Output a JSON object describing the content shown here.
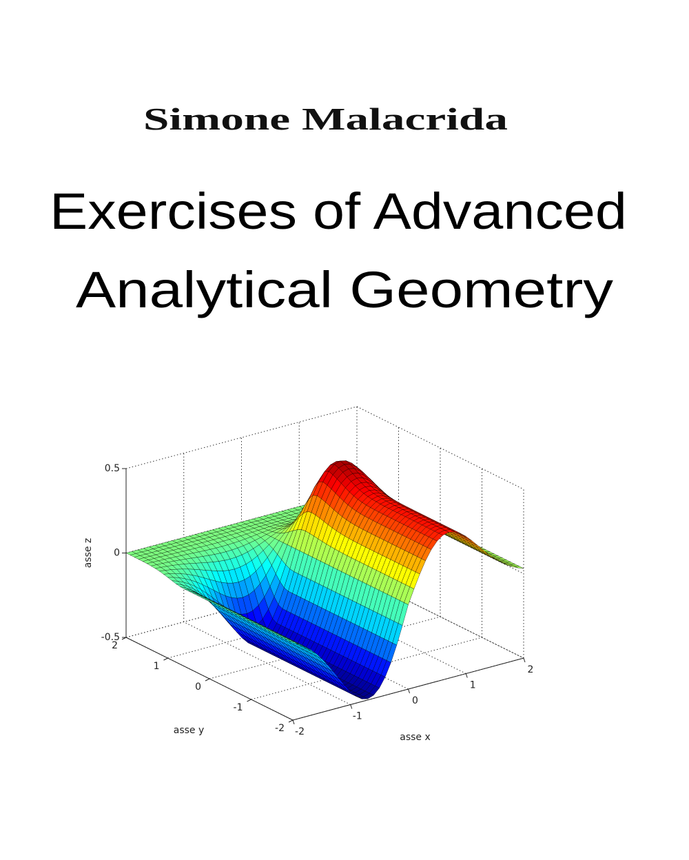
{
  "cover": {
    "author": "Simone Malacrida",
    "title_lines": [
      "Exercises of Advanced",
      "Analytical Geometry"
    ],
    "figure": {
      "type": "surface",
      "xlabel": "asse x",
      "ylabel": "asse y",
      "zlabel": "asse z",
      "xlim": [
        -2,
        2
      ],
      "ylim": [
        -2,
        2
      ],
      "zlim": [
        -0.5,
        0.5
      ],
      "xticks": [
        -2,
        -1,
        0,
        1,
        2
      ],
      "yticks": [
        -2,
        -1,
        0,
        1,
        2
      ],
      "zticks": [
        -0.5,
        0,
        0.5
      ],
      "grid": true
    }
  }
}
